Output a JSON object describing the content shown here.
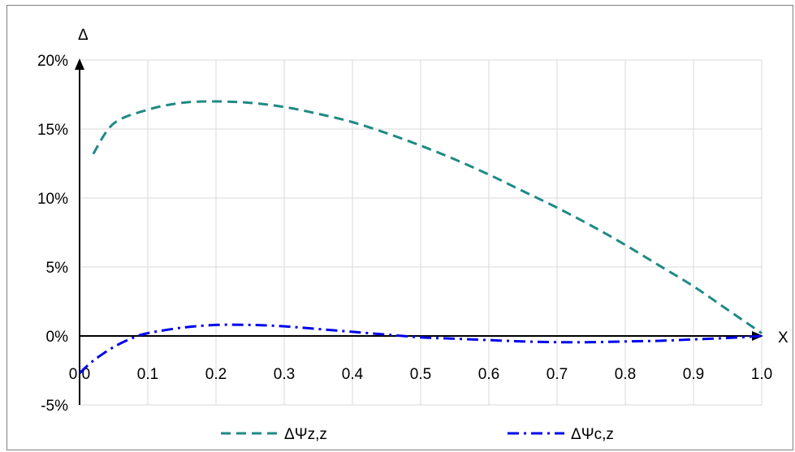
{
  "chart_data": {
    "type": "line",
    "xlabel": "X",
    "ylabel": "Δ",
    "xlim": [
      0,
      1.0
    ],
    "ylim": [
      -0.05,
      0.2
    ],
    "grid": true,
    "legend_position": "bottom",
    "x_ticks": [
      "0.0",
      "0.1",
      "0.2",
      "0.3",
      "0.4",
      "0.5",
      "0.6",
      "0.7",
      "0.8",
      "0.9",
      "1.0"
    ],
    "y_ticks": [
      "-5%",
      "0%",
      "5%",
      "10%",
      "15%",
      "20%"
    ],
    "series": [
      {
        "name": "ΔΨz,z",
        "color": "#1f8a84",
        "dash": "dashed",
        "x": [
          0.02,
          0.05,
          0.1,
          0.15,
          0.2,
          0.25,
          0.3,
          0.35,
          0.4,
          0.45,
          0.5,
          0.55,
          0.6,
          0.65,
          0.7,
          0.75,
          0.8,
          0.85,
          0.9,
          0.95,
          1.0
        ],
        "y": [
          0.132,
          0.154,
          0.164,
          0.169,
          0.17,
          0.169,
          0.166,
          0.161,
          0.155,
          0.147,
          0.138,
          0.128,
          0.117,
          0.105,
          0.093,
          0.08,
          0.066,
          0.051,
          0.036,
          0.019,
          0.002
        ]
      },
      {
        "name": "ΔΨc,z",
        "color": "#0000ee",
        "dash": "dash-dot",
        "x": [
          0.0,
          0.02,
          0.05,
          0.08,
          0.1,
          0.15,
          0.2,
          0.25,
          0.3,
          0.35,
          0.4,
          0.45,
          0.5,
          0.55,
          0.6,
          0.65,
          0.7,
          0.75,
          0.8,
          0.85,
          0.9,
          0.95,
          1.0
        ],
        "y": [
          -0.027,
          -0.018,
          -0.008,
          -0.001,
          0.002,
          0.006,
          0.008,
          0.008,
          0.007,
          0.005,
          0.003,
          0.001,
          -0.001,
          -0.002,
          -0.003,
          -0.004,
          -0.0045,
          -0.0045,
          -0.004,
          -0.0035,
          -0.0025,
          -0.0015,
          0.0
        ]
      }
    ]
  }
}
